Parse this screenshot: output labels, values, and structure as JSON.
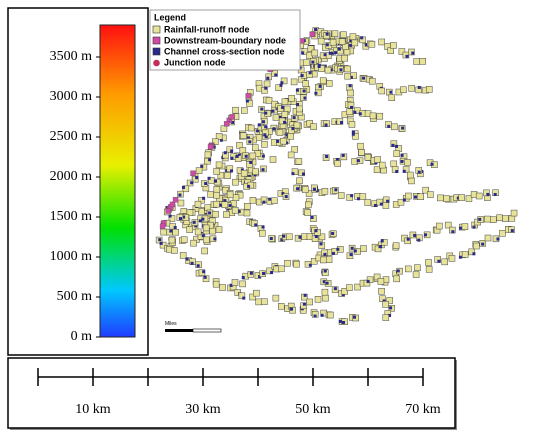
{
  "colorbar": {
    "range": [
      0,
      3900
    ],
    "ticks": [
      {
        "value": 0,
        "label": "0 m"
      },
      {
        "value": 500,
        "label": "500 m"
      },
      {
        "value": 1000,
        "label": "1000 m"
      },
      {
        "value": 1500,
        "label": "1500 m"
      },
      {
        "value": 2000,
        "label": "2000 m"
      },
      {
        "value": 2500,
        "label": "2500 m"
      },
      {
        "value": 3000,
        "label": "3000 m"
      },
      {
        "value": 3500,
        "label": "3500 m"
      }
    ]
  },
  "legend": {
    "title": "Legend",
    "items": [
      "Rainfall-runoff node",
      "Downstream-boundary node",
      "Channel cross-section node",
      "Junction node"
    ]
  },
  "mini_scale": "Miles",
  "scale_bar": {
    "range": [
      0,
      70
    ],
    "ticks": [
      0,
      10,
      20,
      30,
      40,
      50,
      60,
      70
    ],
    "labels": [
      {
        "value": 10,
        "label": "10 km"
      },
      {
        "value": 30,
        "label": "30 km"
      },
      {
        "value": 50,
        "label": "50 km"
      },
      {
        "value": 70,
        "label": "70 km"
      }
    ]
  }
}
